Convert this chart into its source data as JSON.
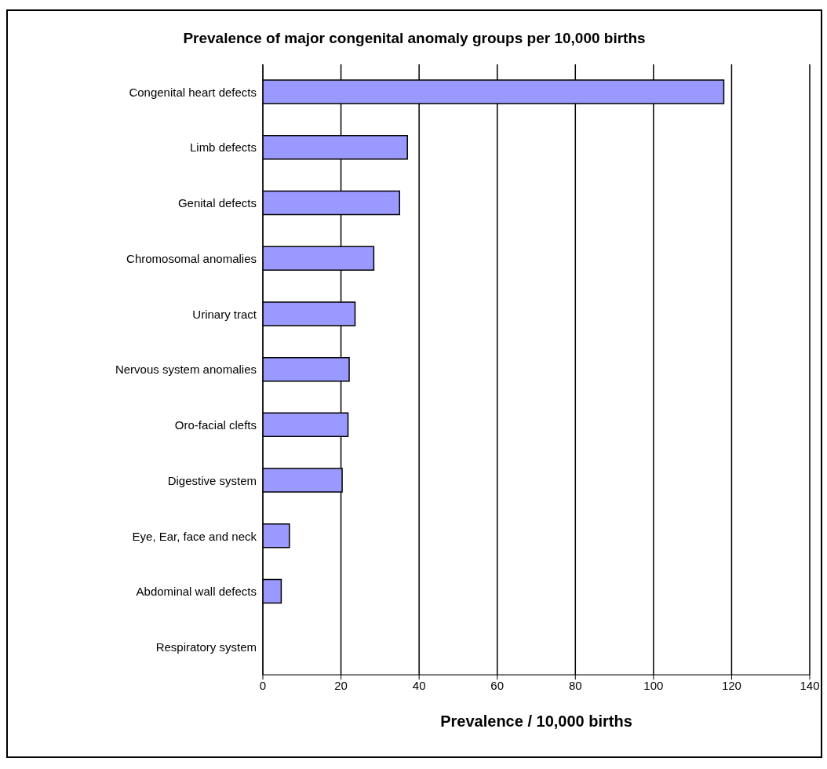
{
  "chart_data": {
    "type": "bar",
    "orientation": "horizontal",
    "title": "Prevalence of major congenital anomaly groups per 10,000 births",
    "xlabel": "Prevalence / 10,000 births",
    "categories": [
      "Congenital heart defects",
      "Limb defects",
      "Genital defects",
      "Chromosomal anomalies",
      "Urinary tract",
      "Nervous system anomalies",
      "Oro-facial clefts",
      "Digestive system",
      "Eye, Ear, face and neck",
      "Abdominal wall defects",
      "Respiratory system"
    ],
    "values": [
      118,
      37,
      35,
      28.4,
      23.6,
      22.1,
      21.8,
      20.3,
      6.8,
      4.7,
      0
    ],
    "color": "#9999ff",
    "xlim": [
      0,
      140
    ],
    "xticks": [
      0,
      20,
      40,
      60,
      80,
      100,
      120,
      140
    ],
    "grid": "x"
  }
}
